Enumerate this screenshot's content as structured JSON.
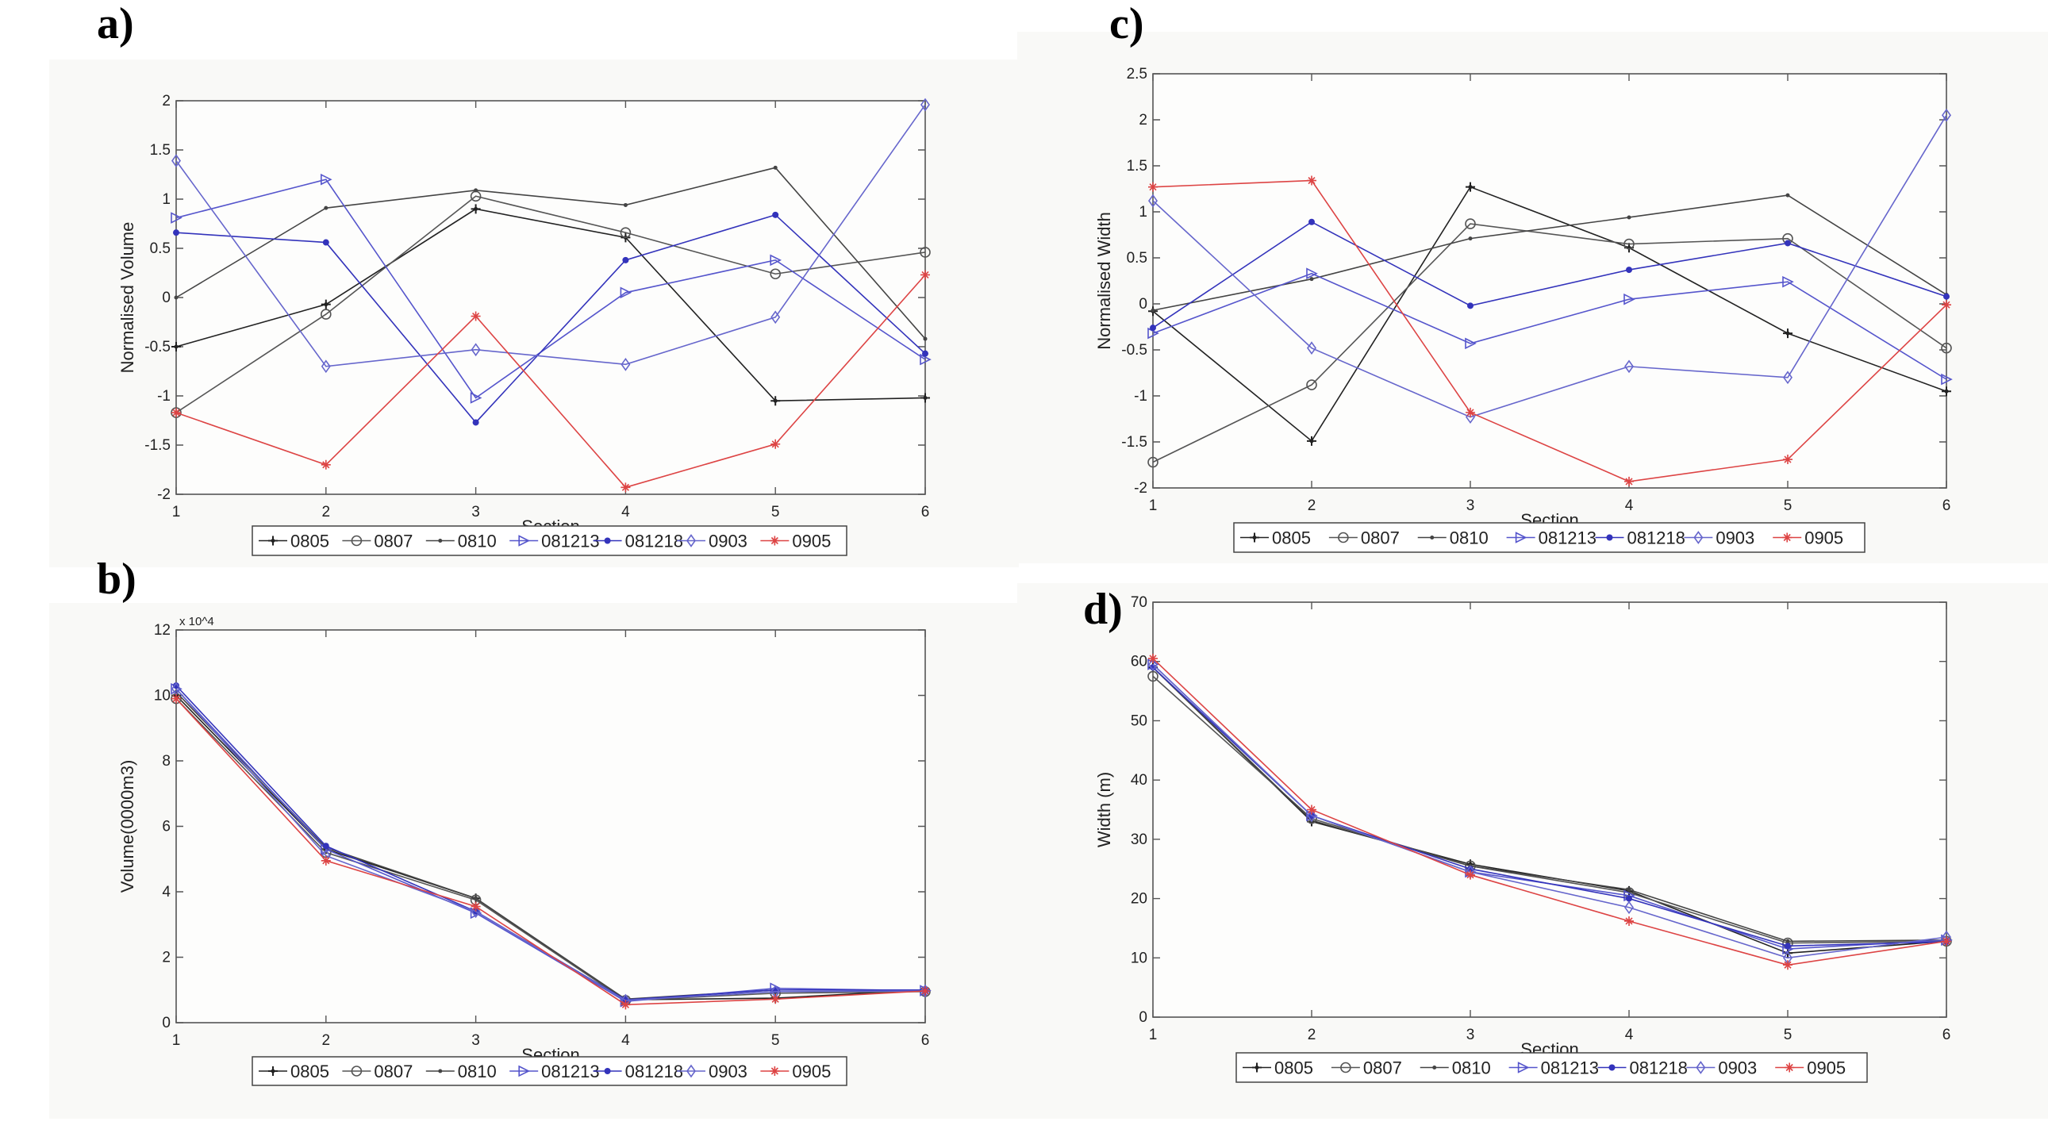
{
  "chart_data": [
    {
      "panel": "a)",
      "type": "line",
      "xlabel": "Section",
      "ylabel": "Normalised Volume",
      "x": [
        1,
        2,
        3,
        4,
        5,
        6
      ],
      "xlim": [
        1,
        6
      ],
      "ylim": [
        -2,
        2
      ],
      "yticks": [
        -2,
        -1.5,
        -1,
        -0.5,
        0,
        0.5,
        1,
        1.5,
        2
      ],
      "grid": false,
      "legend": "bottom",
      "series": [
        {
          "name": "0805",
          "color": "#222222",
          "marker": "plus",
          "values": [
            -0.5,
            -0.07,
            0.9,
            0.61,
            -1.05,
            -1.02
          ]
        },
        {
          "name": "0807",
          "color": "#555555",
          "marker": "circle",
          "values": [
            -1.17,
            -0.17,
            1.03,
            0.66,
            0.24,
            0.46
          ]
        },
        {
          "name": "0810",
          "color": "#444444",
          "marker": "dot",
          "values": [
            0.0,
            0.91,
            1.09,
            0.94,
            1.32,
            -0.42
          ]
        },
        {
          "name": "081213",
          "color": "#5555cc",
          "marker": "triangle-right",
          "values": [
            0.81,
            1.2,
            -1.02,
            0.05,
            0.38,
            -0.63
          ]
        },
        {
          "name": "081218",
          "color": "#3333bb",
          "marker": "filled-dot",
          "values": [
            0.66,
            0.56,
            -1.27,
            0.38,
            0.84,
            -0.57
          ]
        },
        {
          "name": "0903",
          "color": "#6666cc",
          "marker": "diamond",
          "values": [
            1.39,
            -0.7,
            -0.53,
            -0.68,
            -0.2,
            1.96
          ]
        },
        {
          "name": "0905",
          "color": "#dd4444",
          "marker": "star",
          "values": [
            -1.17,
            -1.7,
            -0.19,
            -1.93,
            -1.49,
            0.23
          ]
        }
      ]
    },
    {
      "panel": "b)",
      "type": "line",
      "xlabel": "Section",
      "ylabel": "Volume(0000m3)",
      "y_multiplier": "x 10^4",
      "x": [
        1,
        2,
        3,
        4,
        5,
        6
      ],
      "xlim": [
        1,
        6
      ],
      "ylim": [
        0,
        12
      ],
      "yticks": [
        0,
        2,
        4,
        6,
        8,
        10,
        12
      ],
      "grid": false,
      "legend": "bottom",
      "series": [
        {
          "name": "0805",
          "color": "#222222",
          "marker": "plus",
          "values": [
            10.0,
            5.3,
            3.8,
            0.7,
            0.75,
            1.0
          ]
        },
        {
          "name": "0807",
          "color": "#555555",
          "marker": "circle",
          "values": [
            9.9,
            5.2,
            3.75,
            0.68,
            0.9,
            0.95
          ]
        },
        {
          "name": "0810",
          "color": "#444444",
          "marker": "dot",
          "values": [
            10.1,
            5.35,
            3.8,
            0.72,
            1.0,
            1.0
          ]
        },
        {
          "name": "081213",
          "color": "#5555cc",
          "marker": "triangle-right",
          "values": [
            10.2,
            5.3,
            3.35,
            0.65,
            1.05,
            0.98
          ]
        },
        {
          "name": "081218",
          "color": "#3333bb",
          "marker": "filled-dot",
          "values": [
            10.3,
            5.4,
            3.4,
            0.7,
            1.0,
            1.0
          ]
        },
        {
          "name": "0903",
          "color": "#6666cc",
          "marker": "diamond",
          "values": [
            10.2,
            5.1,
            3.4,
            0.68,
            0.95,
            0.97
          ]
        },
        {
          "name": "0905",
          "color": "#dd4444",
          "marker": "star",
          "values": [
            9.9,
            4.95,
            3.55,
            0.55,
            0.72,
            0.97
          ]
        }
      ]
    },
    {
      "panel": "c)",
      "type": "line",
      "xlabel": "Section",
      "ylabel": "Normalised Width",
      "x": [
        1,
        2,
        3,
        4,
        5,
        6
      ],
      "xlim": [
        1,
        6
      ],
      "ylim": [
        -2,
        2.5
      ],
      "yticks": [
        -2,
        -1.5,
        -1,
        -0.5,
        0,
        0.5,
        1,
        1.5,
        2,
        2.5
      ],
      "grid": false,
      "legend": "bottom",
      "series": [
        {
          "name": "0805",
          "color": "#222222",
          "marker": "plus",
          "values": [
            -0.08,
            -1.49,
            1.27,
            0.61,
            -0.32,
            -0.95
          ]
        },
        {
          "name": "0807",
          "color": "#555555",
          "marker": "circle",
          "values": [
            -1.72,
            -0.88,
            0.87,
            0.65,
            0.71,
            -0.48
          ]
        },
        {
          "name": "0810",
          "color": "#444444",
          "marker": "dot",
          "values": [
            -0.07,
            0.27,
            0.71,
            0.94,
            1.18,
            0.1
          ]
        },
        {
          "name": "081213",
          "color": "#5555cc",
          "marker": "triangle-right",
          "values": [
            -0.32,
            0.33,
            -0.43,
            0.05,
            0.24,
            -0.82
          ]
        },
        {
          "name": "081218",
          "color": "#3333bb",
          "marker": "filled-dot",
          "values": [
            -0.26,
            0.89,
            -0.02,
            0.37,
            0.66,
            0.08
          ]
        },
        {
          "name": "0903",
          "color": "#6666cc",
          "marker": "diamond",
          "values": [
            1.12,
            -0.48,
            -1.23,
            -0.68,
            -0.8,
            2.05
          ]
        },
        {
          "name": "0905",
          "color": "#dd4444",
          "marker": "star",
          "values": [
            1.27,
            1.34,
            -1.18,
            -1.93,
            -1.69,
            -0.01
          ]
        }
      ]
    },
    {
      "panel": "d)",
      "type": "line",
      "xlabel": "Section",
      "ylabel": "Width (m)",
      "x": [
        1,
        2,
        3,
        4,
        5,
        6
      ],
      "xlim": [
        1,
        6
      ],
      "ylim": [
        0,
        70
      ],
      "yticks": [
        0,
        10,
        20,
        30,
        40,
        50,
        60,
        70
      ],
      "grid": false,
      "legend": "bottom",
      "series": [
        {
          "name": "0805",
          "color": "#222222",
          "marker": "plus",
          "values": [
            59,
            33,
            25.8,
            21.3,
            10.8,
            12.8
          ]
        },
        {
          "name": "0807",
          "color": "#555555",
          "marker": "circle",
          "values": [
            57.5,
            33.5,
            25.5,
            21,
            12.5,
            12.8
          ]
        },
        {
          "name": "0810",
          "color": "#444444",
          "marker": "dot",
          "values": [
            59,
            33.2,
            25.5,
            21.5,
            12.8,
            13
          ]
        },
        {
          "name": "081213",
          "color": "#5555cc",
          "marker": "triangle-right",
          "values": [
            59.5,
            34,
            24.5,
            20.5,
            11.5,
            13
          ]
        },
        {
          "name": "081218",
          "color": "#3333bb",
          "marker": "filled-dot",
          "values": [
            59,
            34,
            25,
            20,
            12,
            12.7
          ]
        },
        {
          "name": "0903",
          "color": "#6666cc",
          "marker": "diamond",
          "values": [
            59.5,
            34,
            24.5,
            18.5,
            10,
            13.5
          ]
        },
        {
          "name": "0905",
          "color": "#dd4444",
          "marker": "star",
          "values": [
            60.5,
            35,
            24,
            16.2,
            8.8,
            12.8
          ]
        }
      ]
    }
  ]
}
